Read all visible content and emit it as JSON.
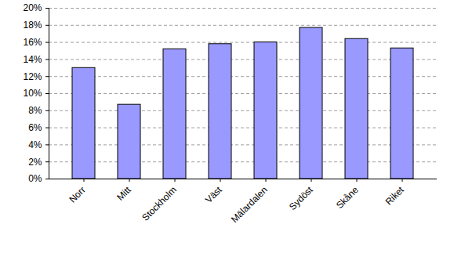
{
  "chart_data": {
    "type": "bar",
    "categories": [
      "Norr",
      "Mitt",
      "Stockholm",
      "Väst",
      "Mälardalen",
      "Sydöst",
      "Skåne",
      "Riket"
    ],
    "values": [
      13.0,
      8.7,
      15.2,
      15.8,
      16.0,
      17.7,
      16.4,
      15.3
    ],
    "color": "#9999ff",
    "ylim": [
      0,
      20
    ],
    "yticks": [
      {
        "value": 0,
        "label": "0%"
      },
      {
        "value": 2,
        "label": "2%"
      },
      {
        "value": 4,
        "label": "4%"
      },
      {
        "value": 6,
        "label": "6%"
      },
      {
        "value": 8,
        "label": "8%"
      },
      {
        "value": 10,
        "label": "10%"
      },
      {
        "value": 12,
        "label": "12%"
      },
      {
        "value": 14,
        "label": "14%"
      },
      {
        "value": 16,
        "label": "16%"
      },
      {
        "value": 18,
        "label": "18%"
      },
      {
        "value": 20,
        "label": "20%"
      }
    ],
    "grid": true
  }
}
